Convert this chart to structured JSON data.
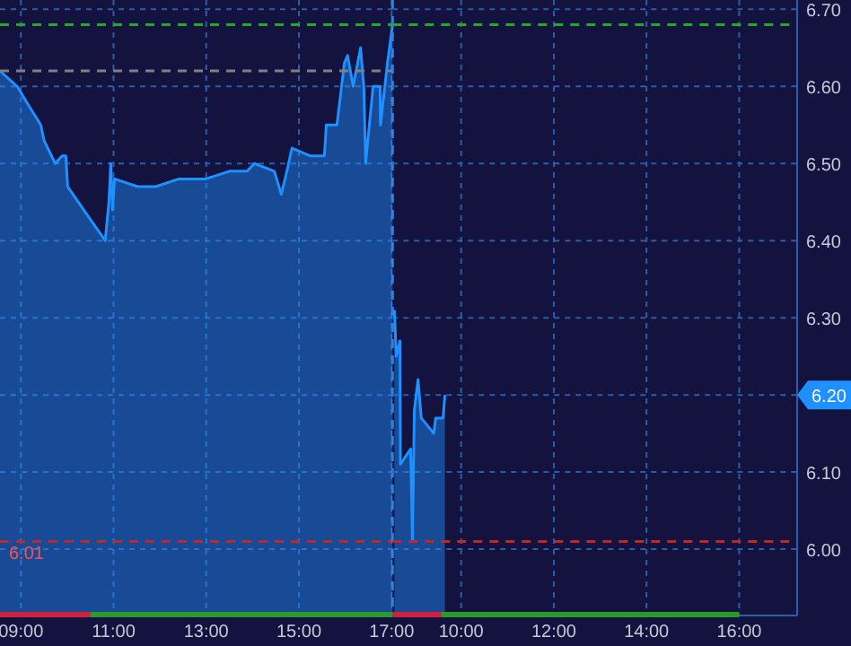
{
  "chart_data": [
    {
      "type": "area",
      "x": [
        8.55,
        8.92,
        9.12,
        9.43,
        9.5,
        9.74,
        9.89,
        9.97,
        10.01,
        10.47,
        10.82,
        10.9,
        10.94,
        10.98,
        11.02,
        11.52,
        11.91,
        12.41,
        12.99,
        13.5,
        13.88,
        14.04,
        14.47,
        14.62,
        14.74,
        14.85,
        15.24,
        15.55,
        15.59,
        15.82,
        15.98,
        16.05,
        16.17,
        16.33,
        16.4,
        16.44,
        16.52,
        16.6,
        16.75,
        16.76,
        16.91,
        17.02
      ],
      "series": [
        {
          "color": "#1e90ff",
          "values": [
            6.62,
            6.6,
            6.58,
            6.55,
            6.53,
            6.5,
            6.51,
            6.51,
            6.47,
            6.43,
            6.4,
            6.45,
            6.5,
            6.44,
            6.48,
            6.47,
            6.47,
            6.48,
            6.48,
            6.49,
            6.49,
            6.5,
            6.49,
            6.46,
            6.49,
            6.52,
            6.51,
            6.51,
            6.55,
            6.55,
            6.63,
            6.64,
            6.6,
            6.65,
            6.6,
            6.5,
            6.55,
            6.6,
            6.6,
            6.55,
            6.63,
            6.68
          ]
        }
      ],
      "xlim": [
        8.55,
        17.02
      ],
      "xticks": [
        {
          "value": 9,
          "label": "09:00"
        },
        {
          "value": 11,
          "label": "11:00"
        },
        {
          "value": 13,
          "label": "13:00"
        },
        {
          "value": 15,
          "label": "15:00"
        },
        {
          "value": 17,
          "label": "17:00"
        }
      ],
      "ylim": [
        5.914,
        6.712
      ],
      "yticks": [
        6,
        6.1,
        6.2,
        6.3,
        6.4,
        6.5,
        6.6,
        6.7
      ],
      "tick_labels": "x",
      "ref_lines": [
        {
          "axis": "y",
          "value": 6.62,
          "color": "#808080",
          "line_style": "dashed"
        },
        {
          "axis": "y",
          "value": 6.68,
          "color": "#22aa22",
          "line_style": "dashed"
        },
        {
          "axis": "y",
          "value": 6.01,
          "label": "6.01",
          "color": "#c02828",
          "line_style": "dashed"
        },
        {
          "axis": "x",
          "value": 17.02,
          "color": "#3a7fd0",
          "line_style": "dashed"
        }
      ],
      "grid": true
    },
    {
      "type": "area",
      "x": [
        8.56,
        8.6,
        8.68,
        8.69,
        8.91,
        8.95,
        8.99,
        9.07,
        9.14,
        9.41,
        9.45,
        9.61,
        9.65
      ],
      "series": [
        {
          "color": "#1e90ff",
          "values": [
            6.31,
            6.25,
            6.27,
            6.11,
            6.13,
            6.01,
            6.18,
            6.22,
            6.17,
            6.15,
            6.17,
            6.17,
            6.2
          ]
        }
      ],
      "xlim": [
        8.52,
        17.25
      ],
      "xticks": [
        {
          "value": 10,
          "label": "10:00"
        },
        {
          "value": 12,
          "label": "12:00"
        },
        {
          "value": 14,
          "label": "14:00"
        },
        {
          "value": 16,
          "label": "16:00"
        }
      ],
      "ylim": [
        5.914,
        6.712
      ],
      "yticks": [
        {
          "value": 6,
          "label": "6.00"
        },
        {
          "value": 6.1,
          "label": "6.10"
        },
        {
          "value": 6.2,
          "label": null
        },
        {
          "value": 6.3,
          "label": "6.30"
        },
        {
          "value": 6.4,
          "label": "6.40"
        },
        {
          "value": 6.5,
          "label": "6.50"
        },
        {
          "value": 6.6,
          "label": "6.60"
        },
        {
          "value": 6.7,
          "label": "6.70"
        }
      ],
      "ref_lines": [
        {
          "axis": "y",
          "value": 6.68,
          "color": "#22aa22",
          "line_style": "dashed"
        },
        {
          "axis": "y",
          "value": 6.01,
          "color": "#c02828",
          "line_style": "dashed"
        }
      ],
      "annotations": [
        "6.20"
      ],
      "grid": true
    }
  ]
}
